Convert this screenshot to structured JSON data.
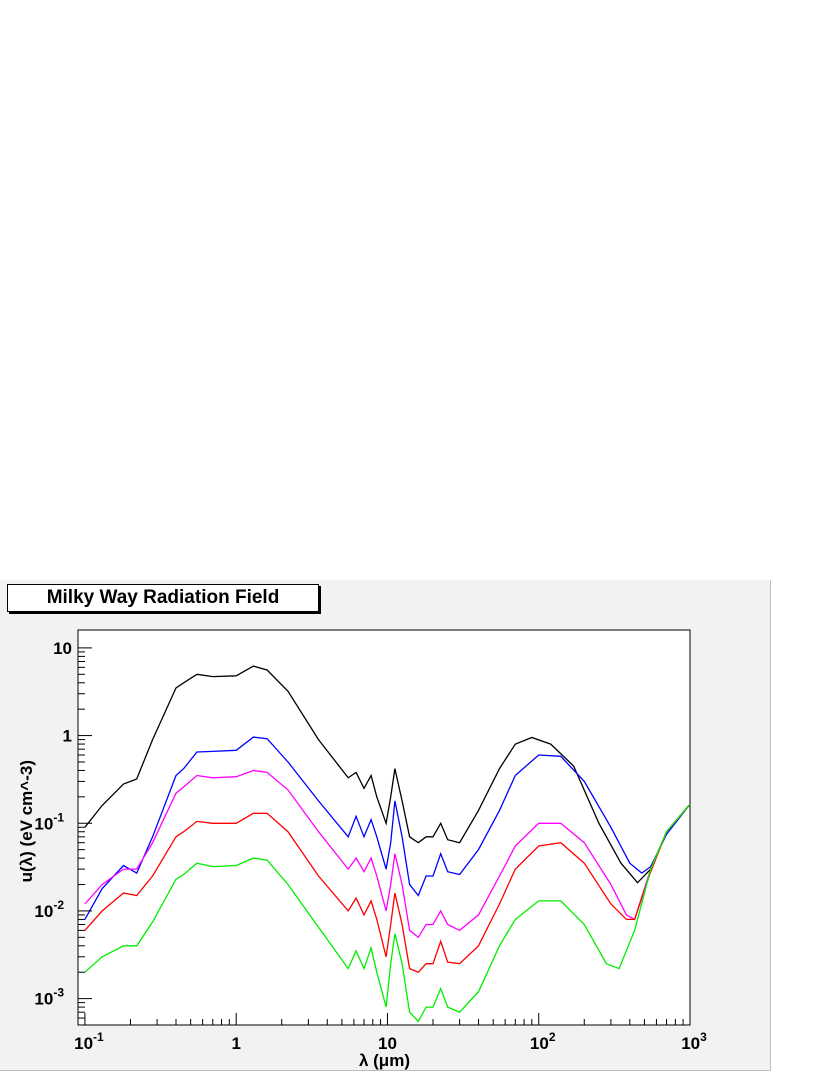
{
  "chart_data": {
    "type": "line",
    "title": "Milky Way Radiation Field",
    "xlabel": "λ (μm)",
    "ylabel": "u(λ) (eV cm^-3)",
    "x_scale": "log",
    "y_scale": "log",
    "xlim": [
      0.09,
      1000
    ],
    "ylim": [
      0.0005,
      16
    ],
    "grid": false,
    "x_ticks": [
      {
        "value": 0.1,
        "base": "10",
        "exp": "-1"
      },
      {
        "value": 1,
        "base": "1",
        "exp": ""
      },
      {
        "value": 10,
        "base": "10",
        "exp": ""
      },
      {
        "value": 100,
        "base": "10",
        "exp": "2"
      },
      {
        "value": 1000,
        "base": "10",
        "exp": "3"
      }
    ],
    "y_ticks": [
      {
        "value": 0.001,
        "base": "10",
        "exp": "-3"
      },
      {
        "value": 0.01,
        "base": "10",
        "exp": "-2"
      },
      {
        "value": 0.1,
        "base": "10",
        "exp": "-1"
      },
      {
        "value": 1,
        "base": "1",
        "exp": ""
      },
      {
        "value": 10,
        "base": "10",
        "exp": ""
      }
    ],
    "series": [
      {
        "color": "#000000",
        "points": [
          [
            0.1,
            0.09
          ],
          [
            0.13,
            0.16
          ],
          [
            0.18,
            0.28
          ],
          [
            0.22,
            0.32
          ],
          [
            0.28,
            0.9
          ],
          [
            0.4,
            3.5
          ],
          [
            0.45,
            4.0
          ],
          [
            0.55,
            5.0
          ],
          [
            0.7,
            4.7
          ],
          [
            1.0,
            4.8
          ],
          [
            1.3,
            6.2
          ],
          [
            1.6,
            5.6
          ],
          [
            2.2,
            3.2
          ],
          [
            3.5,
            0.9
          ],
          [
            5.5,
            0.33
          ],
          [
            6.2,
            0.38
          ],
          [
            7.0,
            0.25
          ],
          [
            7.8,
            0.35
          ],
          [
            8.5,
            0.2
          ],
          [
            9.8,
            0.1
          ],
          [
            10.5,
            0.2
          ],
          [
            11.2,
            0.42
          ],
          [
            12.5,
            0.18
          ],
          [
            14,
            0.07
          ],
          [
            16,
            0.06
          ],
          [
            18,
            0.07
          ],
          [
            20,
            0.07
          ],
          [
            22.5,
            0.1
          ],
          [
            25,
            0.065
          ],
          [
            30,
            0.06
          ],
          [
            40,
            0.14
          ],
          [
            55,
            0.42
          ],
          [
            70,
            0.8
          ],
          [
            90,
            0.95
          ],
          [
            120,
            0.8
          ],
          [
            170,
            0.45
          ],
          [
            250,
            0.1
          ],
          [
            350,
            0.035
          ],
          [
            450,
            0.021
          ],
          [
            550,
            0.03
          ],
          [
            700,
            0.08
          ],
          [
            1000,
            0.165
          ]
        ]
      },
      {
        "color": "#0000ff",
        "points": [
          [
            0.1,
            0.008
          ],
          [
            0.13,
            0.018
          ],
          [
            0.18,
            0.033
          ],
          [
            0.22,
            0.027
          ],
          [
            0.28,
            0.07
          ],
          [
            0.4,
            0.35
          ],
          [
            0.45,
            0.42
          ],
          [
            0.55,
            0.65
          ],
          [
            0.7,
            0.66
          ],
          [
            1.0,
            0.68
          ],
          [
            1.3,
            0.96
          ],
          [
            1.6,
            0.92
          ],
          [
            2.2,
            0.5
          ],
          [
            3.5,
            0.18
          ],
          [
            5.5,
            0.07
          ],
          [
            6.2,
            0.12
          ],
          [
            7.0,
            0.07
          ],
          [
            7.8,
            0.11
          ],
          [
            8.5,
            0.07
          ],
          [
            9.8,
            0.03
          ],
          [
            10.5,
            0.06
          ],
          [
            11.2,
            0.18
          ],
          [
            12.5,
            0.07
          ],
          [
            14,
            0.02
          ],
          [
            16,
            0.015
          ],
          [
            18,
            0.025
          ],
          [
            20,
            0.025
          ],
          [
            22.5,
            0.045
          ],
          [
            25,
            0.028
          ],
          [
            30,
            0.026
          ],
          [
            40,
            0.05
          ],
          [
            55,
            0.14
          ],
          [
            70,
            0.35
          ],
          [
            100,
            0.6
          ],
          [
            140,
            0.58
          ],
          [
            200,
            0.3
          ],
          [
            300,
            0.09
          ],
          [
            400,
            0.035
          ],
          [
            480,
            0.027
          ],
          [
            550,
            0.032
          ],
          [
            700,
            0.075
          ],
          [
            1000,
            0.165
          ]
        ]
      },
      {
        "color": "#ff00ff",
        "points": [
          [
            0.1,
            0.012
          ],
          [
            0.13,
            0.02
          ],
          [
            0.18,
            0.03
          ],
          [
            0.22,
            0.03
          ],
          [
            0.28,
            0.06
          ],
          [
            0.4,
            0.22
          ],
          [
            0.45,
            0.26
          ],
          [
            0.55,
            0.35
          ],
          [
            0.7,
            0.33
          ],
          [
            1.0,
            0.34
          ],
          [
            1.3,
            0.4
          ],
          [
            1.6,
            0.38
          ],
          [
            2.2,
            0.24
          ],
          [
            3.5,
            0.08
          ],
          [
            5.5,
            0.03
          ],
          [
            6.2,
            0.04
          ],
          [
            7.0,
            0.028
          ],
          [
            7.8,
            0.04
          ],
          [
            8.5,
            0.025
          ],
          [
            9.8,
            0.01
          ],
          [
            10.5,
            0.02
          ],
          [
            11.2,
            0.045
          ],
          [
            12.5,
            0.02
          ],
          [
            14,
            0.006
          ],
          [
            16,
            0.005
          ],
          [
            18,
            0.007
          ],
          [
            20,
            0.007
          ],
          [
            22.5,
            0.01
          ],
          [
            25,
            0.007
          ],
          [
            30,
            0.006
          ],
          [
            40,
            0.009
          ],
          [
            55,
            0.025
          ],
          [
            70,
            0.055
          ],
          [
            100,
            0.1
          ],
          [
            140,
            0.1
          ],
          [
            200,
            0.06
          ],
          [
            300,
            0.02
          ],
          [
            380,
            0.009
          ],
          [
            430,
            0.008
          ],
          [
            550,
            0.03
          ],
          [
            700,
            0.08
          ],
          [
            1000,
            0.165
          ]
        ]
      },
      {
        "color": "#ff0000",
        "points": [
          [
            0.1,
            0.006
          ],
          [
            0.13,
            0.01
          ],
          [
            0.18,
            0.016
          ],
          [
            0.22,
            0.015
          ],
          [
            0.28,
            0.025
          ],
          [
            0.4,
            0.07
          ],
          [
            0.45,
            0.08
          ],
          [
            0.55,
            0.105
          ],
          [
            0.7,
            0.1
          ],
          [
            1.0,
            0.1
          ],
          [
            1.3,
            0.13
          ],
          [
            1.6,
            0.13
          ],
          [
            2.2,
            0.08
          ],
          [
            3.5,
            0.025
          ],
          [
            5.5,
            0.01
          ],
          [
            6.2,
            0.014
          ],
          [
            7.0,
            0.009
          ],
          [
            7.8,
            0.013
          ],
          [
            8.5,
            0.008
          ],
          [
            9.8,
            0.003
          ],
          [
            10.5,
            0.007
          ],
          [
            11.2,
            0.016
          ],
          [
            12.5,
            0.007
          ],
          [
            14,
            0.0022
          ],
          [
            16,
            0.002
          ],
          [
            18,
            0.0025
          ],
          [
            20,
            0.0025
          ],
          [
            22.5,
            0.0045
          ],
          [
            25,
            0.0026
          ],
          [
            30,
            0.0025
          ],
          [
            40,
            0.004
          ],
          [
            55,
            0.012
          ],
          [
            70,
            0.03
          ],
          [
            100,
            0.055
          ],
          [
            140,
            0.06
          ],
          [
            200,
            0.035
          ],
          [
            300,
            0.012
          ],
          [
            380,
            0.008
          ],
          [
            430,
            0.008
          ],
          [
            550,
            0.028
          ],
          [
            700,
            0.08
          ],
          [
            1000,
            0.165
          ]
        ]
      },
      {
        "color": "#00ee00",
        "points": [
          [
            0.1,
            0.002
          ],
          [
            0.13,
            0.003
          ],
          [
            0.18,
            0.004
          ],
          [
            0.22,
            0.004
          ],
          [
            0.28,
            0.0075
          ],
          [
            0.4,
            0.023
          ],
          [
            0.45,
            0.026
          ],
          [
            0.55,
            0.035
          ],
          [
            0.7,
            0.032
          ],
          [
            1.0,
            0.033
          ],
          [
            1.3,
            0.04
          ],
          [
            1.6,
            0.038
          ],
          [
            2.2,
            0.02
          ],
          [
            3.5,
            0.0065
          ],
          [
            5.5,
            0.0022
          ],
          [
            6.2,
            0.0035
          ],
          [
            7.0,
            0.0022
          ],
          [
            7.8,
            0.0038
          ],
          [
            8.5,
            0.002
          ],
          [
            9.8,
            0.0008
          ],
          [
            10.5,
            0.0025
          ],
          [
            11.2,
            0.0055
          ],
          [
            12.5,
            0.0025
          ],
          [
            14,
            0.0007
          ],
          [
            16,
            0.00055
          ],
          [
            18,
            0.0008
          ],
          [
            20,
            0.0008
          ],
          [
            22.5,
            0.0013
          ],
          [
            25,
            0.0008
          ],
          [
            30,
            0.0007
          ],
          [
            40,
            0.0012
          ],
          [
            55,
            0.004
          ],
          [
            70,
            0.008
          ],
          [
            100,
            0.013
          ],
          [
            140,
            0.013
          ],
          [
            200,
            0.007
          ],
          [
            280,
            0.0025
          ],
          [
            340,
            0.0022
          ],
          [
            430,
            0.006
          ],
          [
            550,
            0.03
          ],
          [
            700,
            0.08
          ],
          [
            1000,
            0.165
          ]
        ]
      }
    ]
  }
}
